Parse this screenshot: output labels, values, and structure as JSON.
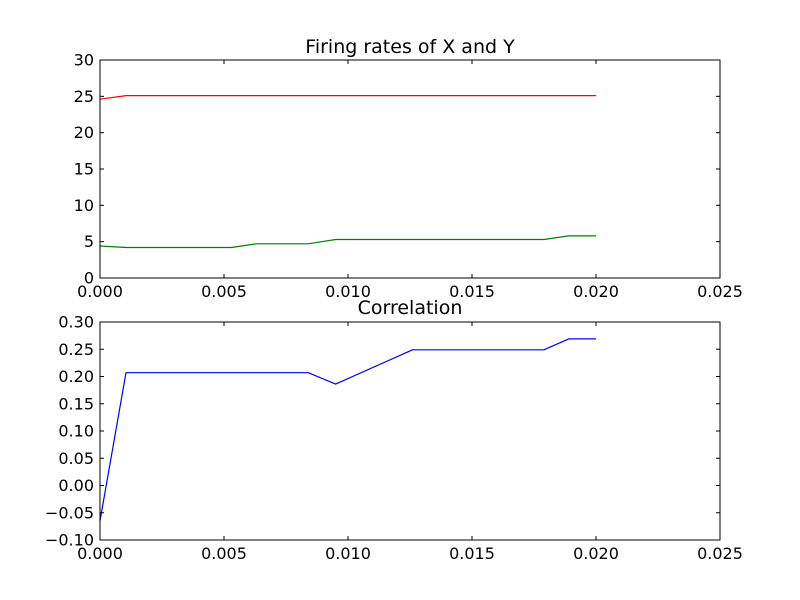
{
  "chart_data": [
    {
      "type": "line",
      "title": "Firing rates of X and Y",
      "xlabel": "",
      "ylabel": "",
      "xlim": [
        0,
        0.025
      ],
      "ylim": [
        0,
        30
      ],
      "xticks": [
        0.0,
        0.005,
        0.01,
        0.015,
        0.02,
        0.025
      ],
      "xtick_labels": [
        "0.000",
        "0.005",
        "0.010",
        "0.015",
        "0.020",
        "0.025"
      ],
      "yticks": [
        0,
        5,
        10,
        15,
        20,
        25,
        30
      ],
      "ytick_labels": [
        "0",
        "5",
        "10",
        "15",
        "20",
        "25",
        "30"
      ],
      "grid": false,
      "series": [
        {
          "color": "#ff0000",
          "x": [
            0.0,
            0.00105,
            0.02
          ],
          "y": [
            24.6,
            25.1,
            25.1
          ]
        },
        {
          "color": "#008000",
          "x": [
            0.0,
            0.00105,
            0.0053,
            0.0063,
            0.0084,
            0.0095,
            0.0179,
            0.0189,
            0.02
          ],
          "y": [
            4.4,
            4.2,
            4.2,
            4.7,
            4.7,
            5.3,
            5.3,
            5.8,
            5.8
          ]
        }
      ]
    },
    {
      "type": "line",
      "title": "Correlation",
      "xlabel": "",
      "ylabel": "",
      "xlim": [
        0,
        0.025
      ],
      "ylim": [
        -0.1,
        0.3
      ],
      "xticks": [
        0.0,
        0.005,
        0.01,
        0.015,
        0.02,
        0.025
      ],
      "xtick_labels": [
        "0.000",
        "0.005",
        "0.010",
        "0.015",
        "0.020",
        "0.025"
      ],
      "yticks": [
        -0.1,
        -0.05,
        0.0,
        0.05,
        0.1,
        0.15,
        0.2,
        0.25,
        0.3
      ],
      "ytick_labels": [
        "−0.10",
        "−0.05",
        "0.00",
        "0.05",
        "0.10",
        "0.15",
        "0.20",
        "0.25",
        "0.30"
      ],
      "grid": false,
      "series": [
        {
          "color": "#0000ff",
          "x": [
            0.0,
            0.00105,
            0.0084,
            0.0095,
            0.0126,
            0.0179,
            0.0189,
            0.02
          ],
          "y": [
            -0.065,
            0.207,
            0.207,
            0.186,
            0.249,
            0.249,
            0.269,
            0.269
          ]
        }
      ]
    }
  ]
}
